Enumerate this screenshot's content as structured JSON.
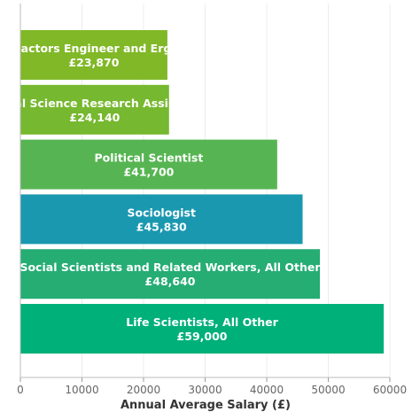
{
  "chart_data": {
    "type": "bar",
    "orientation": "horizontal",
    "categories": [
      "Human Factors Engineer and Ergonomist",
      "Social Science Research Assistant",
      "Political Scientist",
      "Sociologist",
      "Social Scientists and Related Workers, All Other",
      "Life Scientists, All Other"
    ],
    "values": [
      23870,
      24140,
      41700,
      45830,
      48640,
      59000
    ],
    "value_labels": [
      "£23,870",
      "£24,140",
      "£41,700",
      "£45,830",
      "£48,640",
      "£59,000"
    ],
    "colors": [
      "#80b827",
      "#76b82f",
      "#56b552",
      "#1a98b0",
      "#25ad74",
      "#00b079"
    ],
    "xlabel": "Annual Average Salary (£)",
    "ylabel": "",
    "title": "",
    "xlim": [
      0,
      60000
    ],
    "xticks": [
      0,
      10000,
      20000,
      30000,
      40000,
      50000,
      60000
    ],
    "grid": true,
    "legend": "none"
  }
}
